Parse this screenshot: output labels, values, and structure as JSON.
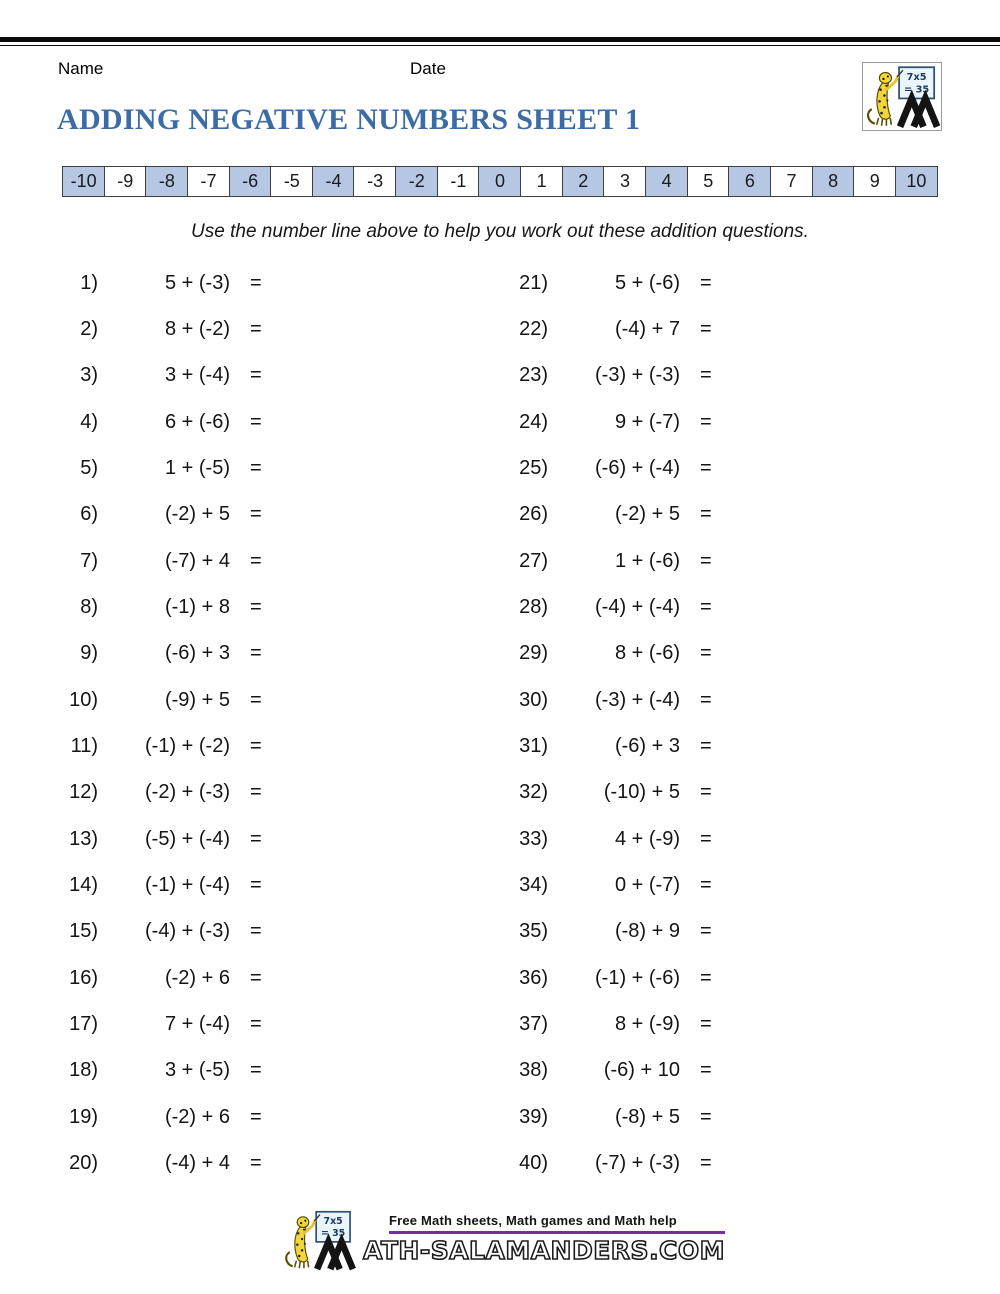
{
  "header": {
    "name_label": "Name",
    "date_label": "Date"
  },
  "title": "ADDING NEGATIVE NUMBERS SHEET 1",
  "logo": {
    "sign_line1": "7x5",
    "sign_line2": "= 35"
  },
  "number_line": {
    "values": [
      -10,
      -9,
      -8,
      -7,
      -6,
      -5,
      -4,
      -3,
      -2,
      -1,
      0,
      1,
      2,
      3,
      4,
      5,
      6,
      7,
      8,
      9,
      10
    ]
  },
  "instruction": "Use the number line above to help you work out these addition questions.",
  "questions": {
    "equals": "=",
    "left": [
      {
        "num": "1)",
        "expr": "5 + (-3)"
      },
      {
        "num": "2)",
        "expr": "8 + (-2)"
      },
      {
        "num": "3)",
        "expr": "3 + (-4)"
      },
      {
        "num": "4)",
        "expr": "6 + (-6)"
      },
      {
        "num": "5)",
        "expr": "1 + (-5)"
      },
      {
        "num": "6)",
        "expr": "(-2) + 5"
      },
      {
        "num": "7)",
        "expr": "(-7) + 4"
      },
      {
        "num": "8)",
        "expr": "(-1) + 8"
      },
      {
        "num": "9)",
        "expr": "(-6) + 3"
      },
      {
        "num": "10)",
        "expr": "(-9) + 5"
      },
      {
        "num": "11)",
        "expr": "(-1) + (-2)"
      },
      {
        "num": "12)",
        "expr": "(-2) + (-3)"
      },
      {
        "num": "13)",
        "expr": "(-5) + (-4)"
      },
      {
        "num": "14)",
        "expr": "(-1) + (-4)"
      },
      {
        "num": "15)",
        "expr": "(-4) + (-3)"
      },
      {
        "num": "16)",
        "expr": "(-2) + 6"
      },
      {
        "num": "17)",
        "expr": "7 + (-4)"
      },
      {
        "num": "18)",
        "expr": "3 + (-5)"
      },
      {
        "num": "19)",
        "expr": "(-2) + 6"
      },
      {
        "num": "20)",
        "expr": "(-4) + 4"
      }
    ],
    "right": [
      {
        "num": "21)",
        "expr": "5 + (-6)"
      },
      {
        "num": "22)",
        "expr": "(-4) + 7"
      },
      {
        "num": "23)",
        "expr": "(-3) + (-3)"
      },
      {
        "num": "24)",
        "expr": "9 + (-7)"
      },
      {
        "num": "25)",
        "expr": "(-6) + (-4)"
      },
      {
        "num": "26)",
        "expr": "(-2) + 5"
      },
      {
        "num": "27)",
        "expr": "1 + (-6)"
      },
      {
        "num": "28)",
        "expr": "(-4) + (-4)"
      },
      {
        "num": "29)",
        "expr": "8 + (-6)"
      },
      {
        "num": "30)",
        "expr": "(-3) + (-4)"
      },
      {
        "num": "31)",
        "expr": "(-6) + 3"
      },
      {
        "num": "32)",
        "expr": "(-10) + 5"
      },
      {
        "num": "33)",
        "expr": "4 + (-9)"
      },
      {
        "num": "34)",
        "expr": "0 + (-7)"
      },
      {
        "num": "35)",
        "expr": "(-8) + 9"
      },
      {
        "num": "36)",
        "expr": "(-1) + (-6)"
      },
      {
        "num": "37)",
        "expr": "8 + (-9)"
      },
      {
        "num": "38)",
        "expr": "(-6) + 10"
      },
      {
        "num": "39)",
        "expr": "(-8) + 5"
      },
      {
        "num": "40)",
        "expr": "(-7) + (-3)"
      }
    ]
  },
  "footer": {
    "tagline": "Free Math sheets, Math games and Math help",
    "site_first": "M",
    "site_rest": "ATH-SALAMANDERS.COM"
  },
  "colors": {
    "title_blue": "#3c6ca6",
    "shade_blue": "#b5c7e3",
    "underline_purple": "#7030a0",
    "mascot_yellow": "#f2d53a"
  }
}
